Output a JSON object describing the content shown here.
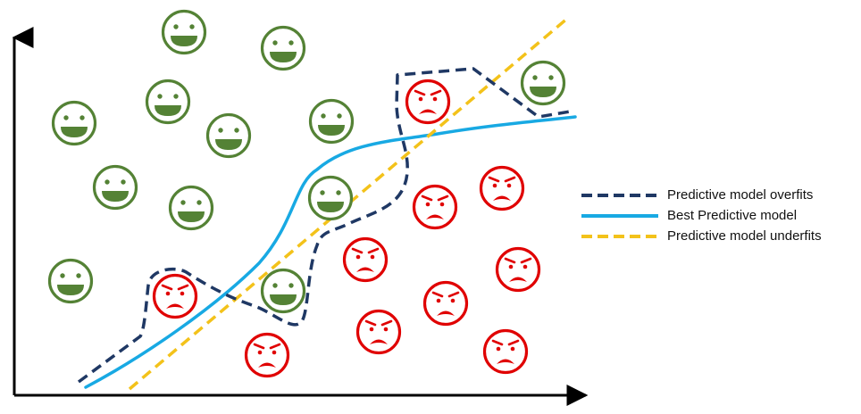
{
  "diagram": {
    "colors": {
      "axis": "#000000",
      "happy": "#548235",
      "sad": "#e00000",
      "overfit": "#1f3864",
      "best": "#18a9e3",
      "underfit": "#f3c21a"
    },
    "icons": {
      "happy": "happy-face-icon",
      "sad": "angry-face-icon"
    },
    "legend": {
      "items": [
        {
          "name": "overfit",
          "label": "Predictive model overfits",
          "style": "dashed",
          "color": "#1f3864"
        },
        {
          "name": "best",
          "label": "Best Predictive model",
          "style": "solid",
          "color": "#18a9e3"
        },
        {
          "name": "underfit",
          "label": "Predictive model underfits",
          "style": "dashed",
          "color": "#f3c21a"
        }
      ]
    }
  }
}
